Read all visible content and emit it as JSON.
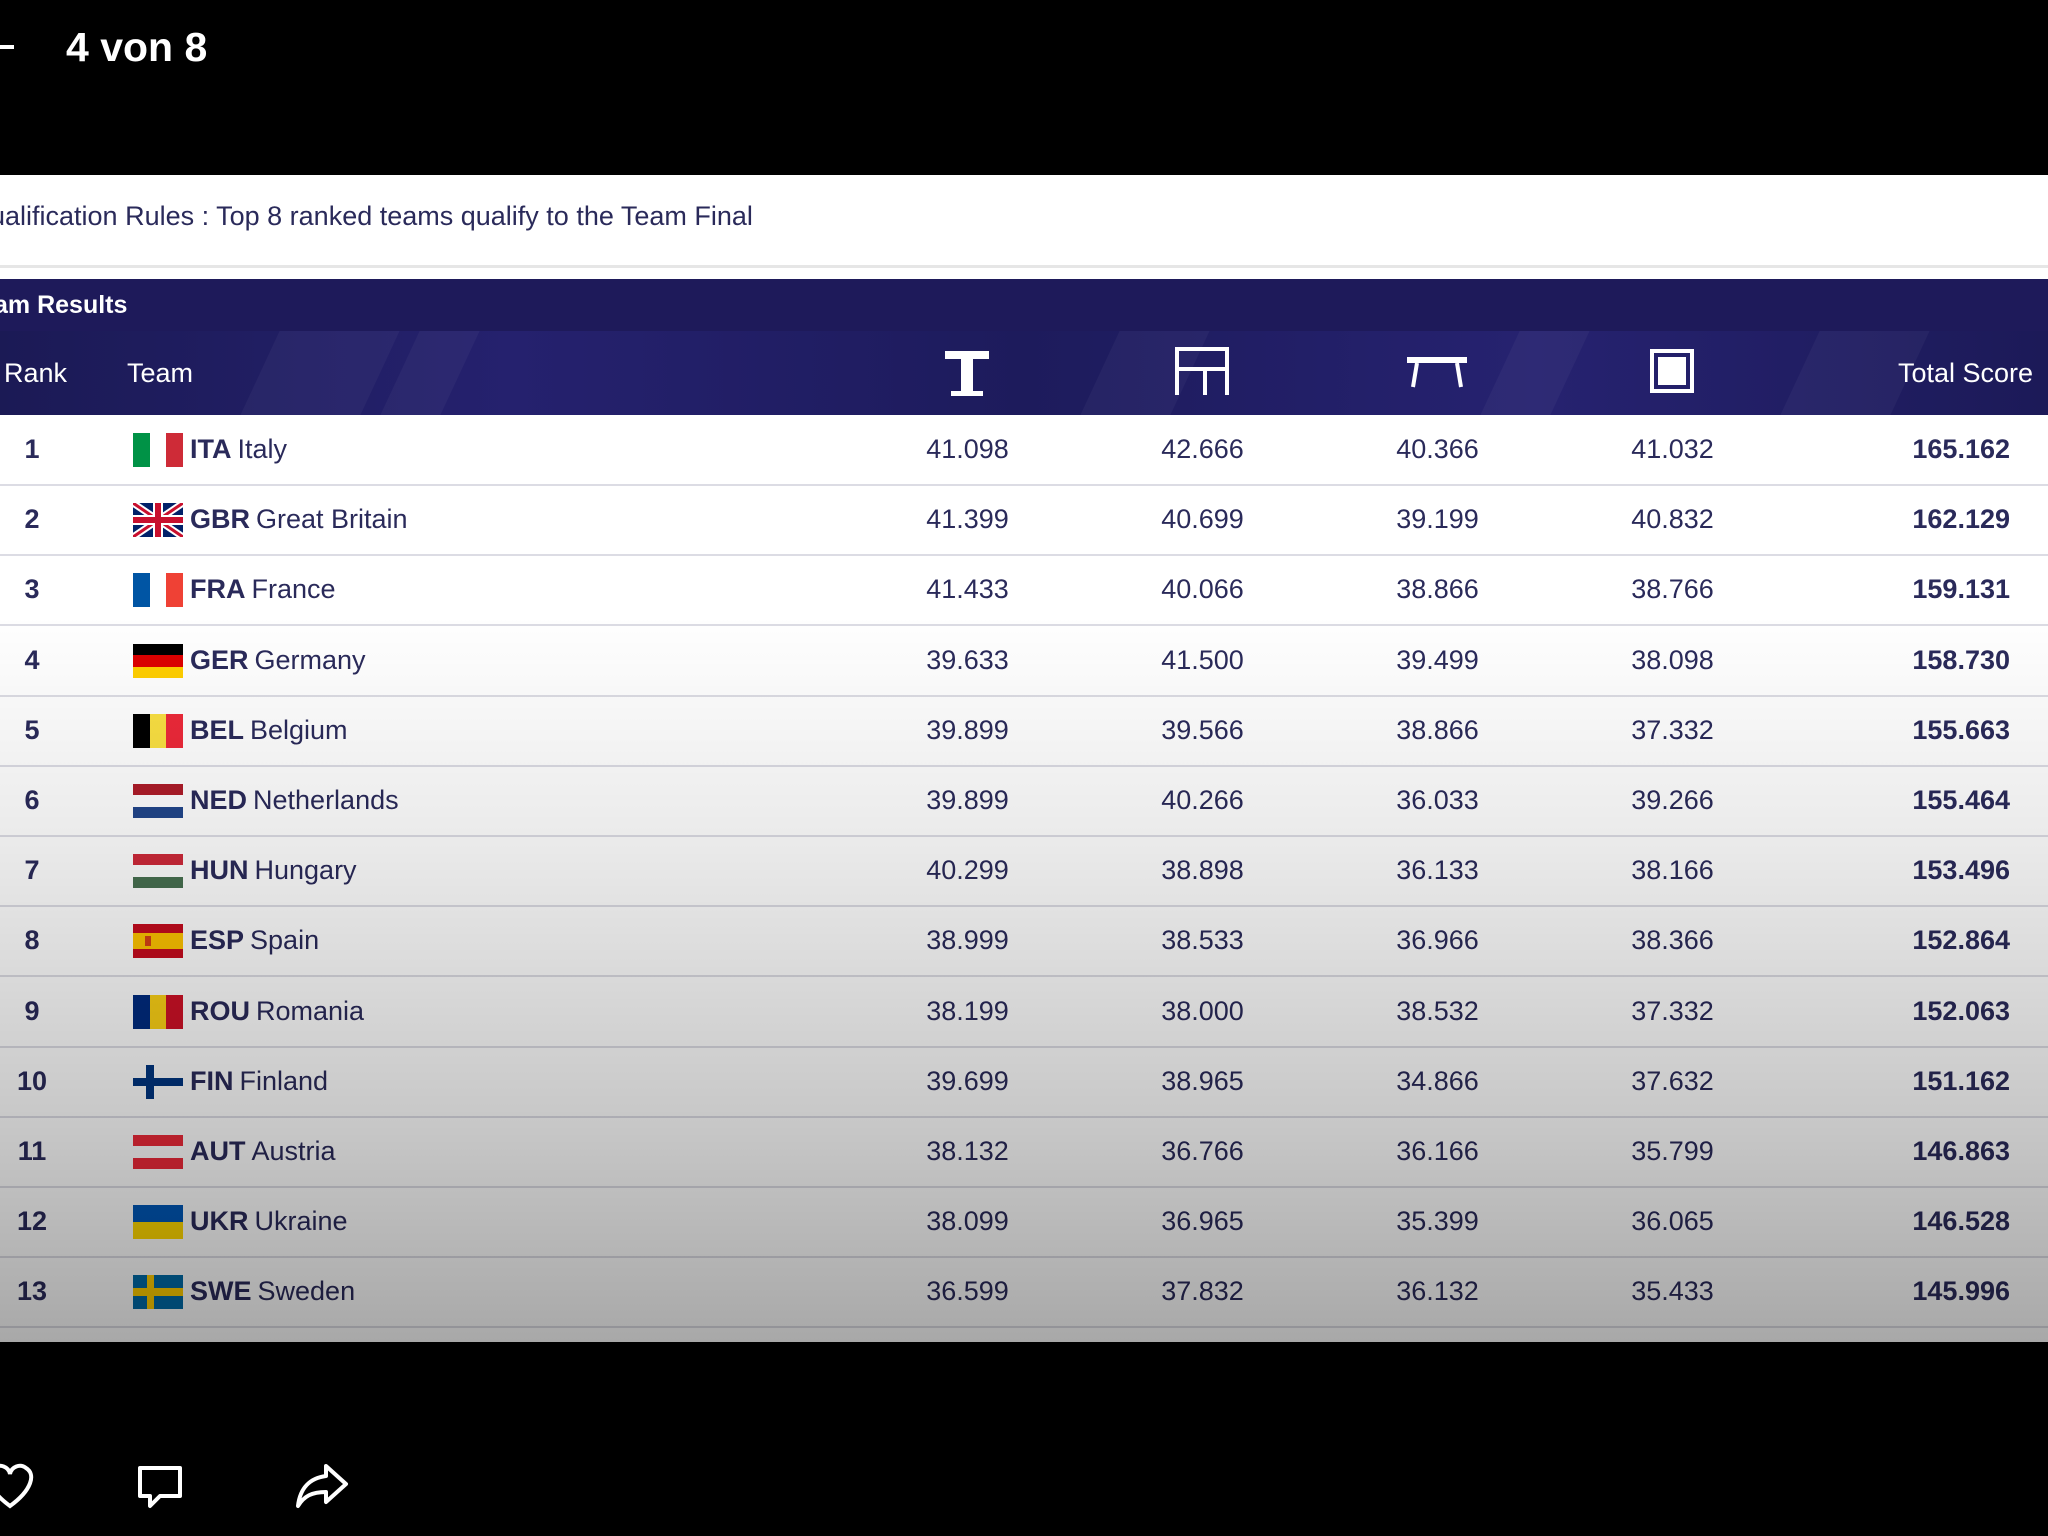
{
  "viewer": {
    "counter": "4 von 8"
  },
  "rules_text": "ualification Rules : Top 8 ranked teams qualify to the Team Final",
  "results_title": "am Results",
  "columns": {
    "rank": "Rank",
    "team": "Team",
    "apparatus_icons": [
      "vault-icon",
      "uneven-bars-icon",
      "balance-beam-icon",
      "floor-exercise-icon"
    ],
    "total": "Total Score"
  },
  "rows": [
    {
      "rank": "1",
      "code": "ITA",
      "name": "Italy",
      "flag": "ita",
      "scores": [
        "41.098",
        "42.666",
        "40.366",
        "41.032"
      ],
      "total": "165.162"
    },
    {
      "rank": "2",
      "code": "GBR",
      "name": "Great Britain",
      "flag": "gbr",
      "scores": [
        "41.399",
        "40.699",
        "39.199",
        "40.832"
      ],
      "total": "162.129"
    },
    {
      "rank": "3",
      "code": "FRA",
      "name": "France",
      "flag": "fra",
      "scores": [
        "41.433",
        "40.066",
        "38.866",
        "38.766"
      ],
      "total": "159.131"
    },
    {
      "rank": "4",
      "code": "GER",
      "name": "Germany",
      "flag": "ger",
      "scores": [
        "39.633",
        "41.500",
        "39.499",
        "38.098"
      ],
      "total": "158.730"
    },
    {
      "rank": "5",
      "code": "BEL",
      "name": "Belgium",
      "flag": "bel",
      "scores": [
        "39.899",
        "39.566",
        "38.866",
        "37.332"
      ],
      "total": "155.663"
    },
    {
      "rank": "6",
      "code": "NED",
      "name": "Netherlands",
      "flag": "ned",
      "scores": [
        "39.899",
        "40.266",
        "36.033",
        "39.266"
      ],
      "total": "155.464"
    },
    {
      "rank": "7",
      "code": "HUN",
      "name": "Hungary",
      "flag": "hun",
      "scores": [
        "40.299",
        "38.898",
        "36.133",
        "38.166"
      ],
      "total": "153.496"
    },
    {
      "rank": "8",
      "code": "ESP",
      "name": "Spain",
      "flag": "esp",
      "scores": [
        "38.999",
        "38.533",
        "36.966",
        "38.366"
      ],
      "total": "152.864"
    },
    {
      "rank": "9",
      "code": "ROU",
      "name": "Romania",
      "flag": "rou",
      "scores": [
        "38.199",
        "38.000",
        "38.532",
        "37.332"
      ],
      "total": "152.063"
    },
    {
      "rank": "10",
      "code": "FIN",
      "name": "Finland",
      "flag": "fin",
      "scores": [
        "39.699",
        "38.965",
        "34.866",
        "37.632"
      ],
      "total": "151.162"
    },
    {
      "rank": "11",
      "code": "AUT",
      "name": "Austria",
      "flag": "aut",
      "scores": [
        "38.132",
        "36.766",
        "36.166",
        "35.799"
      ],
      "total": "146.863"
    },
    {
      "rank": "12",
      "code": "UKR",
      "name": "Ukraine",
      "flag": "ukr",
      "scores": [
        "38.099",
        "36.965",
        "35.399",
        "36.065"
      ],
      "total": "146.528"
    },
    {
      "rank": "13",
      "code": "SWE",
      "name": "Sweden",
      "flag": "swe",
      "scores": [
        "36.599",
        "37.832",
        "36.132",
        "35.433"
      ],
      "total": "145.996"
    }
  ],
  "toolbar_icons": [
    "like-icon",
    "comment-icon",
    "share-icon"
  ]
}
